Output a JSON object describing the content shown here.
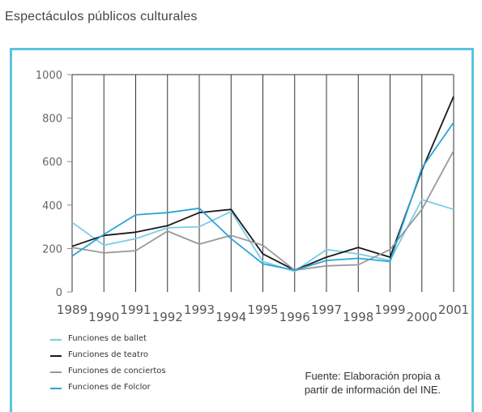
{
  "page": {
    "title": "Espectáculos públicos culturales"
  },
  "source_note": {
    "line1": "Fuente: Elaboración propia a",
    "line2": "partir de información del INE."
  },
  "colors": {
    "frame": "#5bc3e0",
    "grid": "#333333"
  },
  "chart_data": {
    "type": "line",
    "title": "",
    "xlabel": "",
    "ylabel": "",
    "x": [
      "1989",
      "1990",
      "1991",
      "1992",
      "1993",
      "1994",
      "1995",
      "1996",
      "1997",
      "1998",
      "1999",
      "2000",
      "2001"
    ],
    "ylim": [
      0,
      1000
    ],
    "yticks": [
      "0",
      "200",
      "400",
      "600",
      "800",
      "1000"
    ],
    "grid": "vertical",
    "legend_position": "bottom-left",
    "series": [
      {
        "name": "Funciones de ballet",
        "color": "#7ccbe8",
        "values": [
          320,
          215,
          245,
          295,
          300,
          370,
          140,
          95,
          195,
          175,
          145,
          425,
          380
        ]
      },
      {
        "name": "Funciones de teatro",
        "color": "#1a1a1a",
        "values": [
          210,
          260,
          275,
          305,
          365,
          380,
          175,
          100,
          160,
          205,
          160,
          560,
          900
        ]
      },
      {
        "name": "Funciones de conciertos",
        "color": "#999999",
        "values": [
          205,
          180,
          190,
          280,
          220,
          260,
          215,
          100,
          120,
          125,
          195,
          380,
          650
        ]
      },
      {
        "name": "Funciones de Folclor",
        "color": "#2aa5d8",
        "values": [
          165,
          265,
          355,
          365,
          385,
          245,
          130,
          100,
          145,
          155,
          140,
          570,
          780
        ]
      }
    ]
  }
}
